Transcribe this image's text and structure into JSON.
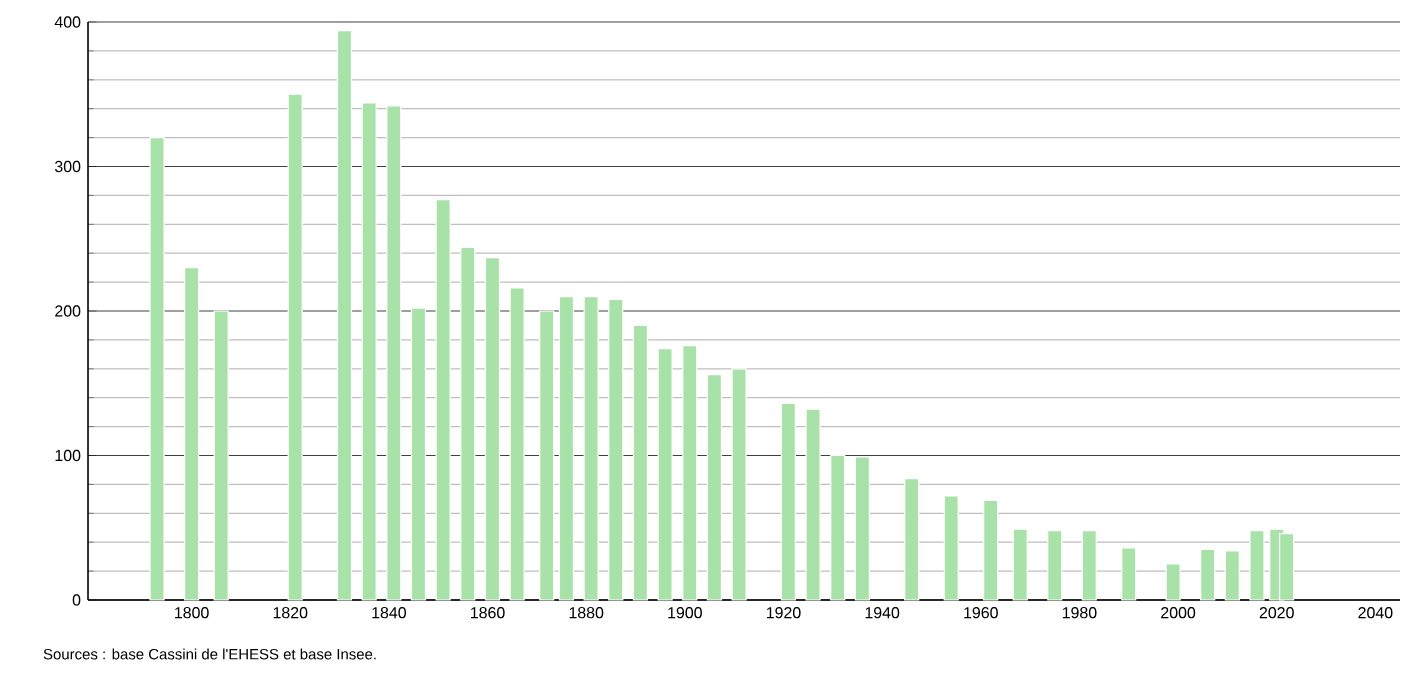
{
  "chart_data": {
    "type": "bar",
    "color": "#a8e2a8",
    "x": [
      1793,
      1800,
      1806,
      1821,
      1831,
      1836,
      1841,
      1846,
      1851,
      1856,
      1861,
      1866,
      1872,
      1876,
      1881,
      1886,
      1891,
      1896,
      1901,
      1906,
      1911,
      1921,
      1926,
      1931,
      1936,
      1946,
      1954,
      1962,
      1968,
      1975,
      1982,
      1990,
      1999,
      2006,
      2011,
      2016,
      2020,
      2022
    ],
    "values": [
      320,
      230,
      200,
      350,
      394,
      344,
      342,
      202,
      277,
      244,
      237,
      216,
      200,
      210,
      210,
      208,
      190,
      174,
      176,
      156,
      160,
      136,
      132,
      100,
      99,
      84,
      72,
      69,
      49,
      48,
      48,
      36,
      25,
      35,
      34,
      48,
      49,
      46
    ],
    "xlim": [
      1779,
      2045
    ],
    "xticks": [
      1800,
      1820,
      1840,
      1860,
      1880,
      1900,
      1920,
      1940,
      1960,
      1980,
      2000,
      2020,
      2040
    ],
    "ylim": [
      0,
      400
    ],
    "yticks": [
      0,
      100,
      200,
      300,
      400
    ],
    "grid": true,
    "annotations": [
      "Sources : base Cassini de l'EHESS et base Insee."
    ]
  }
}
